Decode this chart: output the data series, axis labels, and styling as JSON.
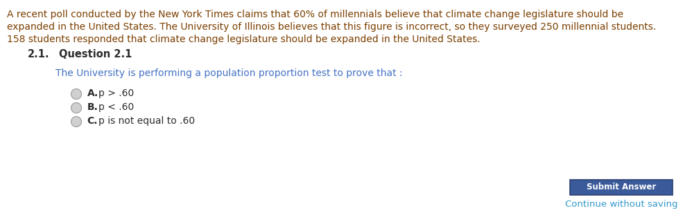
{
  "bg_color": "#ffffff",
  "text_color_body": "#7B3F00",
  "text_color_dark": "#3d3d3d",
  "text_color_question": "#4472C4",
  "text_color_section": "#2c2c2c",
  "text_color_continue": "#3399cc",
  "para_text_line1": "A recent poll conducted by the New York Times claims that 60% of millennials believe that climate change legislature should be",
  "para_text_line2": "expanded in the United States. The University of Illinois believes that this figure is incorrect, so they surveyed 250 millennial students.",
  "para_text_line3": "158 students responded that climate change legislature should be expanded in the United States.",
  "section_label": "2.1.",
  "section_title": "Question 2.1",
  "question_text": "The University is performing a population proportion test to prove that :",
  "option_a_label": "A.",
  "option_a_text": "p > .60",
  "option_b_label": "B.",
  "option_b_text": "p < .60",
  "option_c_label": "C.",
  "option_c_text": "p is not equal to .60",
  "submit_btn_text": "Submit Answer",
  "continue_text": "Continue without saving",
  "font_size_body": 10.0,
  "font_size_section": 10.5,
  "font_size_question": 10.0,
  "font_size_options": 10.0,
  "font_size_btn": 8.5,
  "font_size_continue": 9.5,
  "btn_face": "#3a5a9a",
  "btn_edge": "#2a4070",
  "radio_face": "#d0d0d0",
  "radio_edge": "#999999"
}
